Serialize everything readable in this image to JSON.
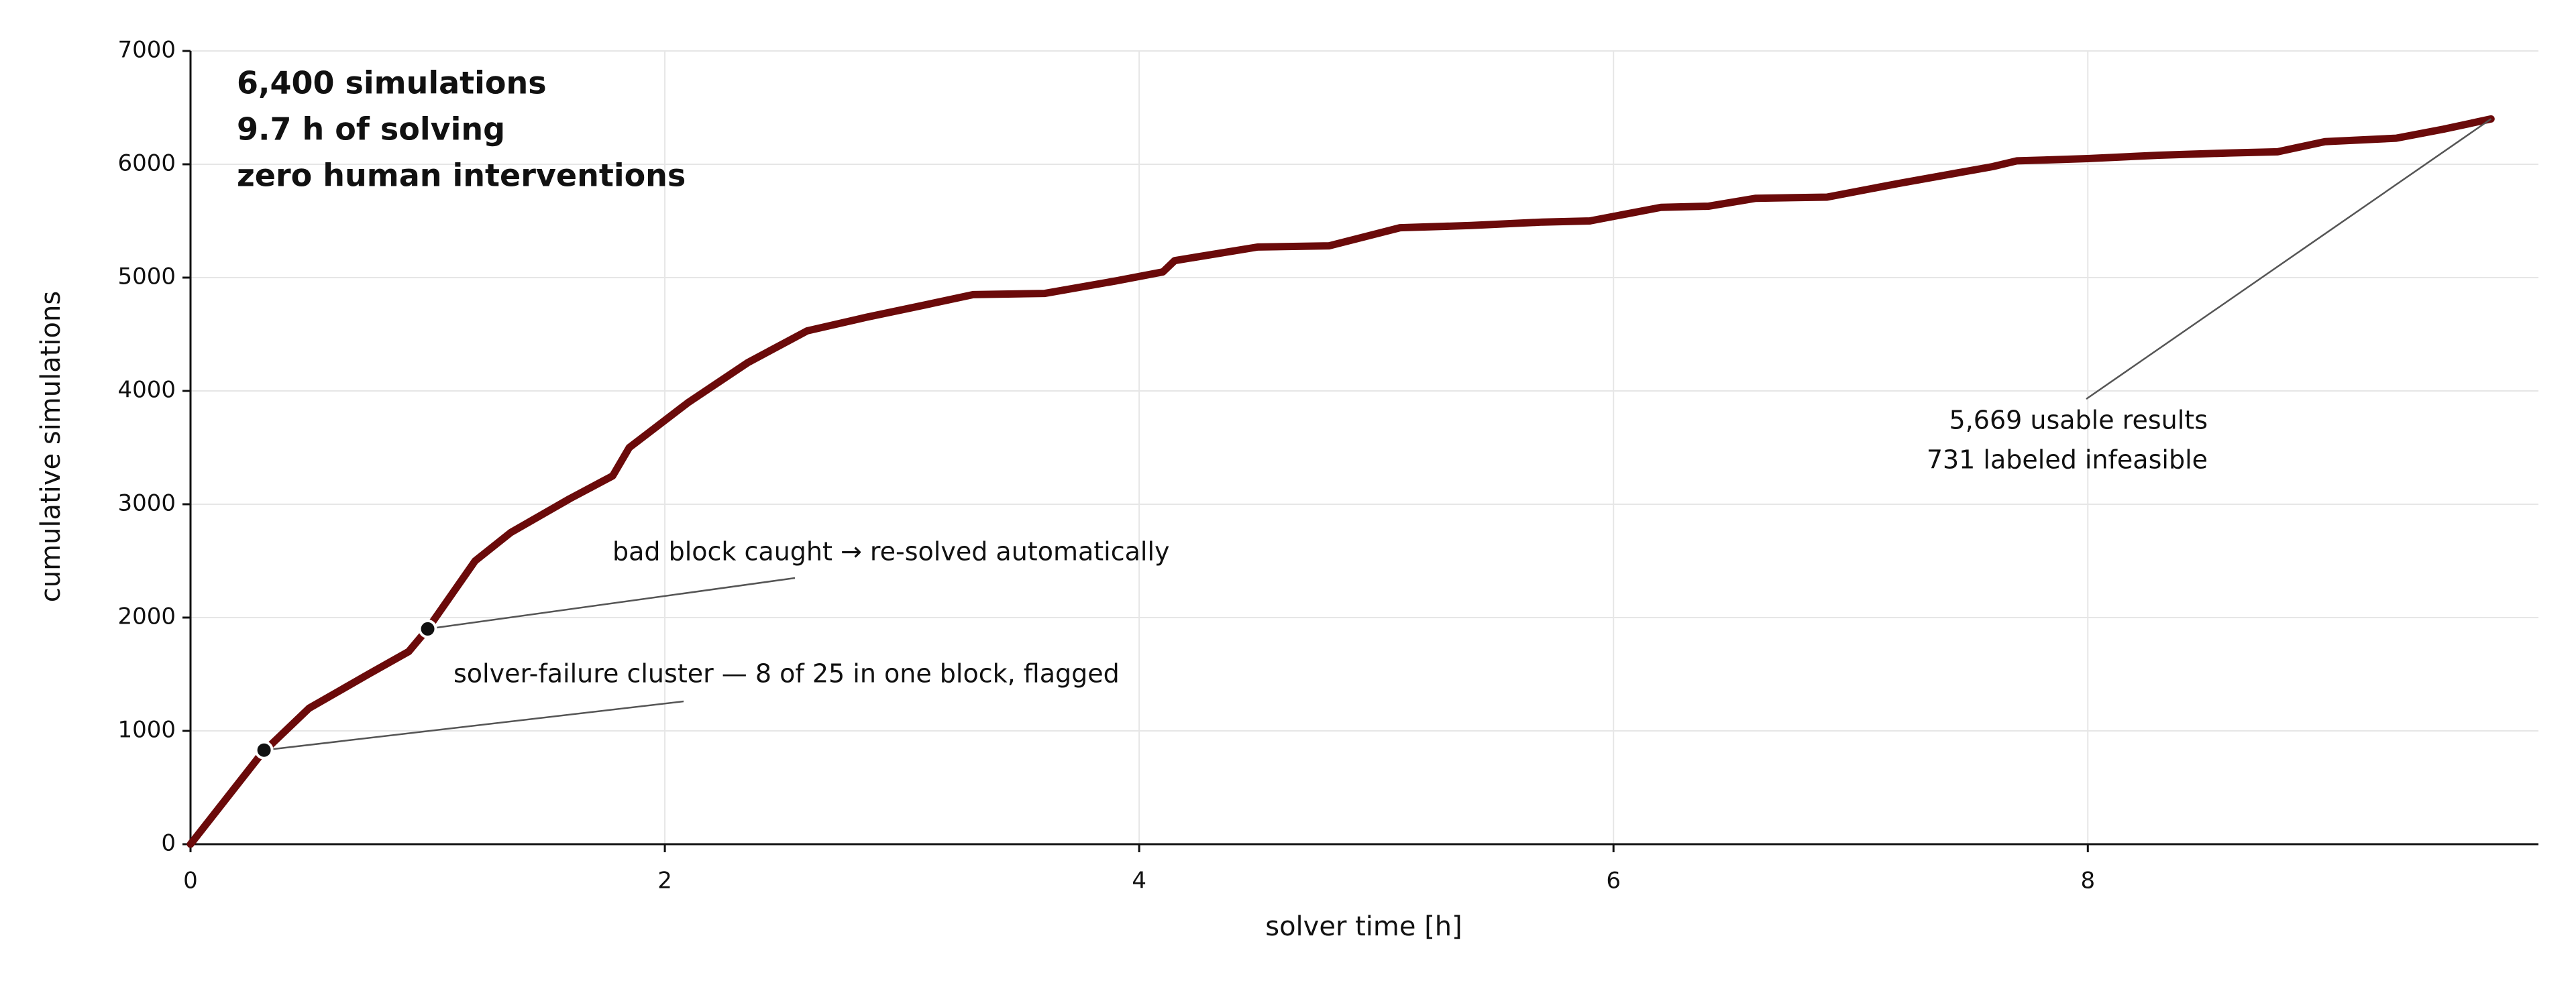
{
  "chart_data": {
    "type": "line",
    "xlabel": "solver time [h]",
    "ylabel": "cumulative simulations",
    "xlim": [
      0,
      9.9
    ],
    "ylim": [
      0,
      7000
    ],
    "xticks": [
      0,
      2,
      4,
      6,
      8
    ],
    "yticks": [
      0,
      1000,
      2000,
      3000,
      4000,
      5000,
      6000,
      7000
    ],
    "grid": true,
    "color": "#6b0a0a",
    "x": [
      0,
      0.3,
      0.5,
      0.75,
      0.92,
      1.0,
      1.2,
      1.35,
      1.6,
      1.78,
      1.85,
      2.1,
      2.35,
      2.6,
      2.85,
      3.1,
      3.3,
      3.6,
      3.9,
      4.1,
      4.15,
      4.5,
      4.8,
      5.1,
      5.4,
      5.7,
      5.9,
      6.2,
      6.4,
      6.6,
      6.9,
      7.2,
      7.6,
      7.7,
      8.0,
      8.3,
      8.6,
      8.8,
      9.0,
      9.3,
      9.5,
      9.7
    ],
    "values": [
      0,
      800,
      1200,
      1500,
      1700,
      1900,
      2500,
      2750,
      3050,
      3250,
      3500,
      3900,
      4250,
      4530,
      4650,
      4760,
      4850,
      4860,
      4970,
      5050,
      5150,
      5270,
      5280,
      5440,
      5460,
      5490,
      5500,
      5620,
      5630,
      5700,
      5710,
      5830,
      5980,
      6030,
      6050,
      6080,
      6100,
      6110,
      6200,
      6230,
      6310,
      6400
    ],
    "summary": [
      "6,400 simulations",
      "9.7 h of solving",
      "zero human interventions"
    ],
    "annotations": [
      {
        "text": [
          "bad block caught → re-solved automatically"
        ],
        "x": 1.0,
        "y": 1900,
        "marker": true
      },
      {
        "text": [
          "solver-failure cluster — 8 of 25 in one block, flagged"
        ],
        "x": 0.31,
        "y": 830,
        "marker": true
      },
      {
        "text": [
          "5,669 usable results",
          "731 labeled infeasible"
        ],
        "x": 9.7,
        "y": 6400,
        "marker": false
      }
    ]
  }
}
